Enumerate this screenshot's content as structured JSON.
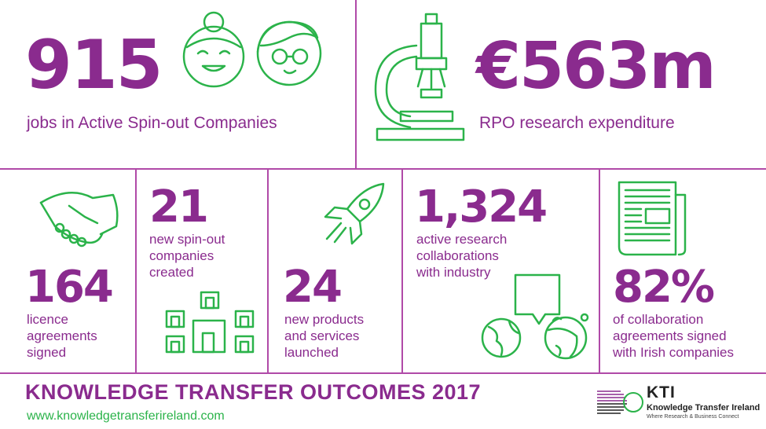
{
  "stats": {
    "jobs": {
      "value": "915",
      "label": "jobs in Active Spin-out Companies"
    },
    "rpo": {
      "value": "€563m",
      "label": "RPO research expenditure"
    },
    "licence": {
      "value": "164",
      "label_lines": [
        "licence",
        "agreements",
        "signed"
      ]
    },
    "spinout": {
      "value": "21",
      "label_lines": [
        "new spin-out",
        "companies",
        "created"
      ]
    },
    "products": {
      "value": "24",
      "label_lines": [
        "new products",
        "and services",
        "launched"
      ]
    },
    "collab": {
      "value": "1,324",
      "label_lines": [
        "active research",
        "collaborations",
        "with industry"
      ]
    },
    "irish": {
      "value": "82%",
      "label_lines": [
        "of collaboration",
        "agreements signed",
        "with Irish companies"
      ]
    }
  },
  "footer": {
    "title": "KNOWLEDGE TRANSFER OUTCOMES 2017",
    "url": "www.knowledgetransferireland.com"
  },
  "logo": {
    "abbr": "KTI",
    "name": "Knowledge Transfer Ireland",
    "tagline": "Where Research & Business Connect"
  },
  "colors": {
    "purple": "#8a2b8e",
    "green": "#2bb34a",
    "divider": "#b04aa8"
  },
  "icons": [
    "faces-icon",
    "microscope-icon",
    "handshake-icon",
    "buildings-icon",
    "rocket-icon",
    "globes-chat-icon",
    "newspaper-icon"
  ]
}
